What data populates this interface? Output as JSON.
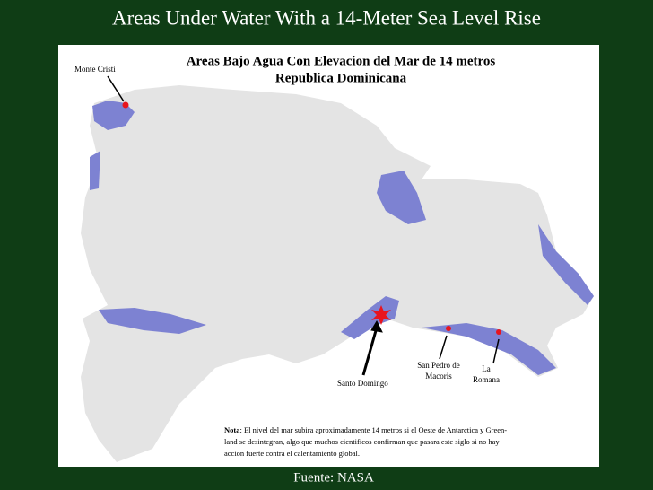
{
  "header": {
    "title": "Areas Under Water With a 14-Meter Sea Level Rise"
  },
  "map": {
    "title_lines": [
      "Areas Bajo Agua Con Elevacion del Mar de 14 metros",
      "Republica Dominicana"
    ],
    "places": [
      {
        "lines": [
          "Monte Cristi"
        ]
      },
      {
        "lines": [
          "Santo Domingo"
        ]
      },
      {
        "lines": [
          "San Pedro de",
          "Macoris"
        ]
      },
      {
        "lines": [
          "La",
          "Romana"
        ]
      }
    ],
    "note": {
      "label": "Nota",
      "lines": [
        ": El nivel del mar subira aproximadamente 14 metros si el Oeste de Antarctica y Green-",
        "land se desintegran, algo que muchos cientificos confirman que pasara este siglo si no hay",
        "accion fuerte contra el calentamiento global."
      ]
    }
  },
  "footer": {
    "source": "Fuente: NASA"
  }
}
